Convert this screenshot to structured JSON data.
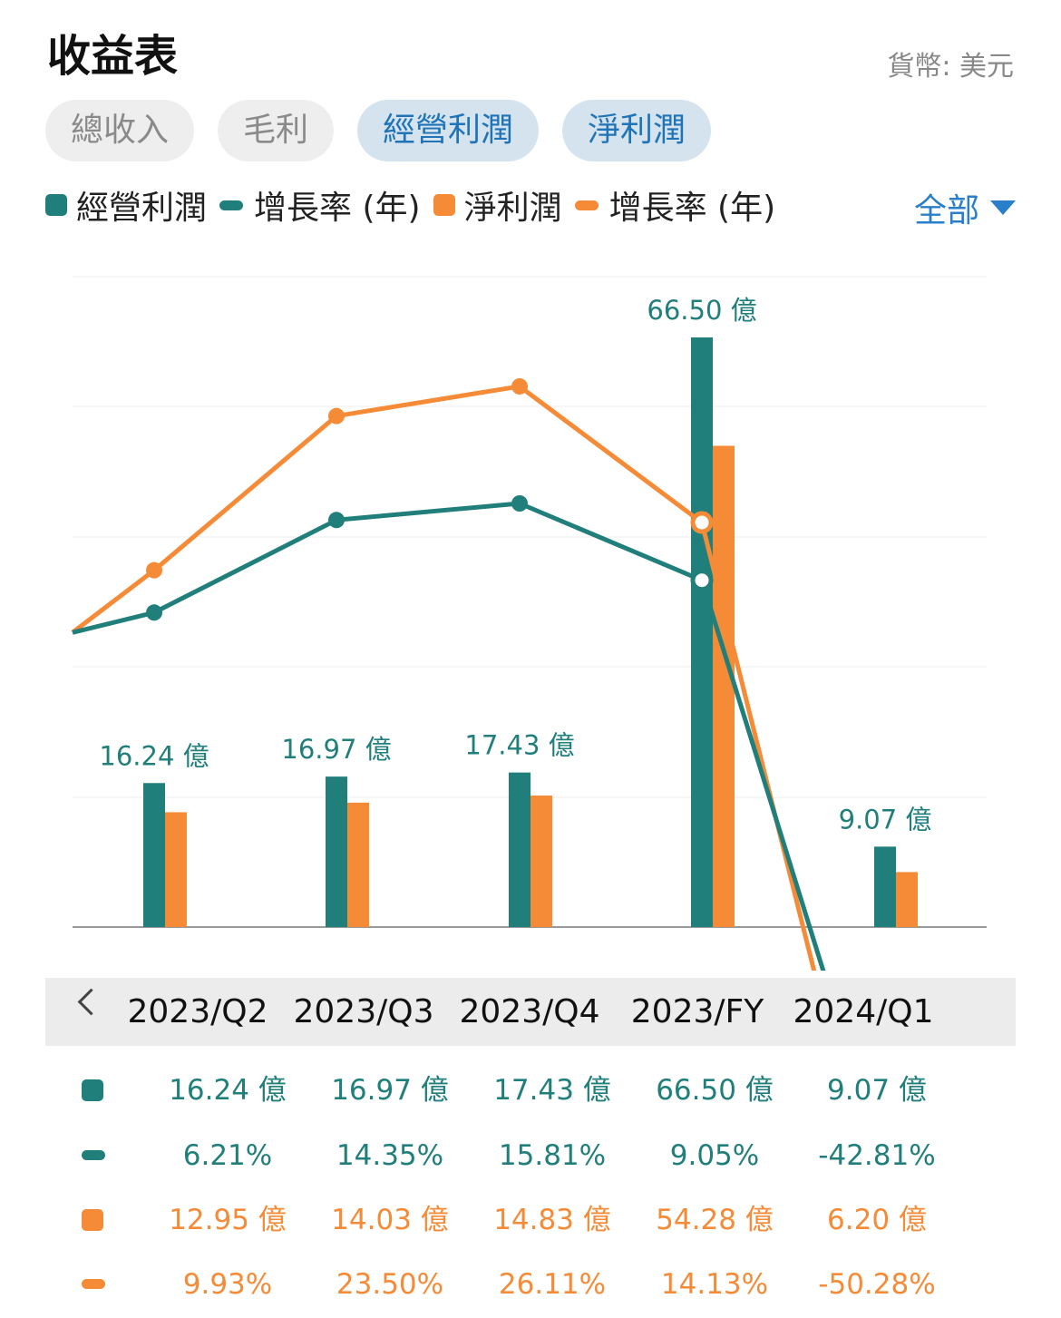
{
  "header": {
    "title": "收益表",
    "currency": "貨幣: 美元"
  },
  "tabs": [
    {
      "label": "總收入",
      "active": false
    },
    {
      "label": "毛利",
      "active": false
    },
    {
      "label": "經營利潤",
      "active": true
    },
    {
      "label": "淨利潤",
      "active": true
    }
  ],
  "legend": [
    {
      "label": "經營利潤",
      "shape": "square",
      "color": "#217f7b"
    },
    {
      "label": "增長率 (年)",
      "shape": "line",
      "color": "#217f7b"
    },
    {
      "label": "淨利潤",
      "shape": "square",
      "color": "#f58b37"
    },
    {
      "label": "增長率 (年)",
      "shape": "line",
      "color": "#f58b37"
    }
  ],
  "filter": {
    "label": "全部",
    "icon": "caret-down-icon"
  },
  "colors": {
    "teal": "#217f7b",
    "orange": "#f58b37",
    "accent": "#2a7fcb"
  },
  "chart_data": {
    "type": "bar",
    "categories": [
      "2023/Q2",
      "2023/Q3",
      "2023/Q4",
      "2023/FY",
      "2024/Q1"
    ],
    "series": [
      {
        "name": "經營利潤",
        "kind": "bar",
        "values": [
          16.24,
          16.97,
          17.43,
          66.5,
          9.07
        ],
        "unit": "億",
        "labels": [
          "16.24 億",
          "16.97 億",
          "17.43 億",
          "66.50 億",
          "9.07 億"
        ]
      },
      {
        "name": "淨利潤",
        "kind": "bar",
        "values": [
          12.95,
          14.03,
          14.83,
          54.28,
          6.2
        ],
        "unit": "億"
      },
      {
        "name": "增長率 (年)",
        "kind": "line",
        "of": "經營利潤",
        "values": [
          6.21,
          14.35,
          15.81,
          9.05,
          -42.81
        ],
        "unit": "%"
      },
      {
        "name": "增長率 (年)",
        "kind": "line",
        "of": "淨利潤",
        "values": [
          9.93,
          23.5,
          26.11,
          14.13,
          -50.28
        ],
        "unit": "%"
      }
    ],
    "grid": true,
    "legend_position": "top-left"
  },
  "period_nav": {
    "icon": "chevron-left-icon",
    "periods": [
      "2023/Q2",
      "2023/Q3",
      "2023/Q4",
      "2023/FY",
      "2024/Q1"
    ]
  },
  "table": {
    "rows": [
      {
        "marker": "square",
        "color": "#217f7b",
        "cells": [
          "16.24 億",
          "16.97 億",
          "17.43 億",
          "66.50 億",
          "9.07 億"
        ]
      },
      {
        "marker": "line",
        "color": "#217f7b",
        "cells": [
          "6.21%",
          "14.35%",
          "15.81%",
          "9.05%",
          "-42.81%"
        ]
      },
      {
        "marker": "square",
        "color": "#f58b37",
        "cells": [
          "12.95 億",
          "14.03 億",
          "14.83 億",
          "54.28 億",
          "6.20 億"
        ]
      },
      {
        "marker": "line",
        "color": "#f58b37",
        "cells": [
          "9.93%",
          "23.50%",
          "26.11%",
          "14.13%",
          "-50.28%"
        ]
      }
    ]
  }
}
